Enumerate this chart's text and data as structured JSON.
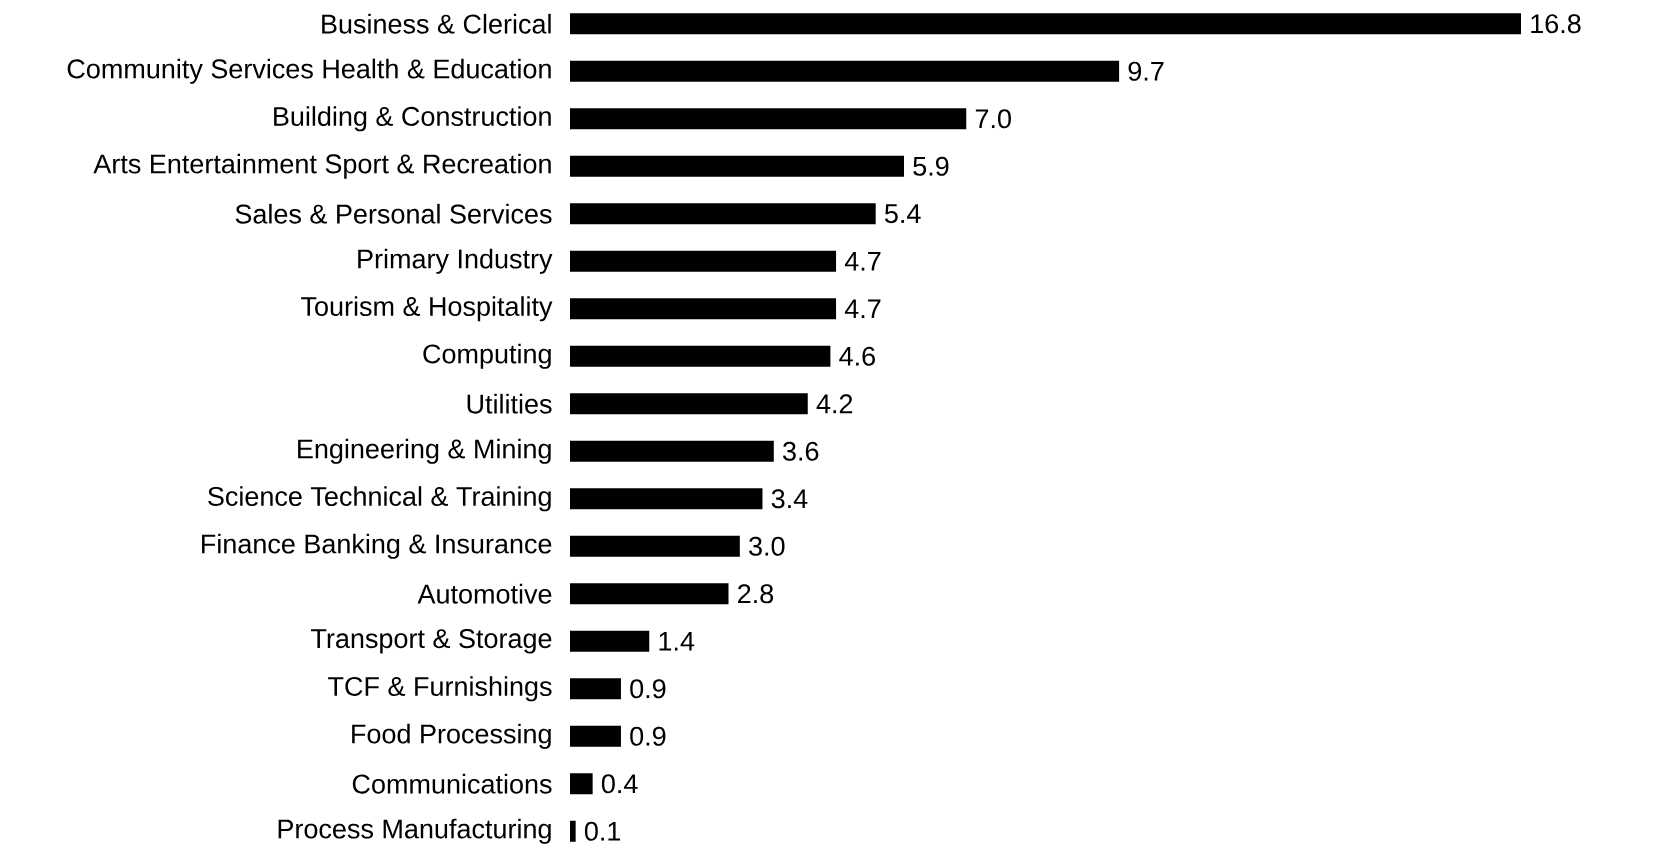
{
  "chart_data": {
    "type": "bar",
    "orientation": "horizontal",
    "color": "#000000",
    "categories": [
      "Business & Clerical",
      "Community Services Health & Education",
      "Building & Construction",
      "Arts Entertainment Sport & Recreation",
      "Sales & Personal Services",
      "Primary Industry",
      "Tourism & Hospitality",
      "Computing",
      "Utilities",
      "Engineering & Mining",
      "Science Technical & Training",
      "Finance Banking & Insurance",
      "Automotive",
      "Transport & Storage",
      "TCF & Furnishings",
      "Food Processing",
      "Communications",
      "Process Manufacturing"
    ],
    "values": [
      16.8,
      9.7,
      7.0,
      5.9,
      5.4,
      4.7,
      4.7,
      4.6,
      4.2,
      3.6,
      3.4,
      3.0,
      2.8,
      1.4,
      0.9,
      0.9,
      0.4,
      0.1
    ],
    "value_labels": [
      "16.8",
      "9.7",
      "7.0",
      "5.9",
      "5.4",
      "4.7",
      "4.7",
      "4.6",
      "4.2",
      "3.6",
      "3.4",
      "3.0",
      "2.8",
      "1.4",
      "0.9",
      "0.9",
      "0.4",
      "0.1"
    ]
  }
}
